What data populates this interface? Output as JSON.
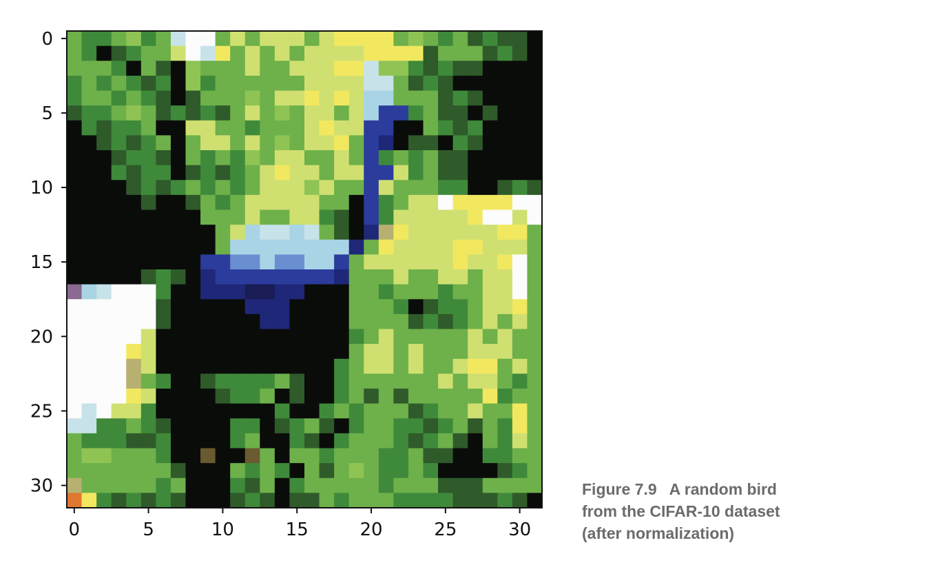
{
  "figure": {
    "caption": {
      "label": "Figure 7.9",
      "text_lines": [
        "A random bird",
        "from the CIFAR-10 dataset",
        "(after normalization)"
      ]
    }
  },
  "chart_data": {
    "type": "heatmap",
    "title": "",
    "xlabel": "",
    "ylabel": "",
    "image_size": [
      32,
      32
    ],
    "xlim": [
      -0.5,
      31.5
    ],
    "ylim": [
      31.5,
      -0.5
    ],
    "x_ticks": [
      0,
      5,
      10,
      15,
      20,
      25,
      30
    ],
    "y_ticks": [
      0,
      5,
      10,
      15,
      20,
      25,
      30
    ],
    "x_tick_labels": [
      "0",
      "5",
      "10",
      "15",
      "20",
      "25",
      "30"
    ],
    "y_tick_labels": [
      "0",
      "5",
      "10",
      "15",
      "20",
      "25",
      "30"
    ],
    "grid": false,
    "palette": {
      "K": "#0a0c0a",
      "d": "#2f5a2a",
      "m": "#3f8a3a",
      "g": "#6eb04a",
      "l": "#8fc455",
      "y": "#cfe070",
      "Y": "#f2e860",
      "W": "#fbfcfb",
      "c": "#c8e2ea",
      "b": "#2b3c9c",
      "B": "#1f2778",
      "n": "#1a1c55",
      "L": "#6a8fd0",
      "C": "#a8d4e6",
      "p": "#8a6a90",
      "o": "#e07830",
      "t": "#b8b070",
      "r": "#6a5a30"
    },
    "rows": [
      "gmmglmgcWWgygyyygyYYYYglgmgdmddK",
      "gmKdmggyWcYgygygyyyyYYYYdgggdmdK",
      "gggmKgdKlgggyggyyyYYcllmdmddKKKK",
      "mgmgmdmKlmggggggyyyyccgdmdKKKKKK",
      "mggmgmdKdggglgyyYyYyCCgggdmdKKKK",
      "dmmglgdmdmdgyglgyygyCbbmgddKdKKK",
      "KmdmmgKKyyggmgggyYyybbKKgmdmKKKK",
      "KKdmdmgKgyygyglgyyYgbBKddKmdKKKK",
      "KKKdmmdKgmgmlgyyggygbmgmgddKKKKK",
      "KKKmdmmKdmdmgyYyygyybbymgddKKKKK",
      "KKKKdmdmgmgmgyyylyggbygggmmKKdmd",
      "KKKKKdKKdgmgyyyyyggKbmgyyWYYYYWW",
      "KKKKKKKKKgggyggyymdKbmyyyyyYWWyW",
      "KKKKKKKKKKgyCccCcgdKBtYyyyyyyYYg",
      "KKKKKKKKKKgCCCCCCCCBgYyyyyYYyyyg",
      "KKKKKKKKKbbLLCLLCCbgyyyyyyYyyYWg",
      "KKKKKdmdKBbbbbbbbbBgggyggyygyyWg",
      "pCcWWWmKKBBBnnBBKKKggmgggmggyyWg",
      "WWWWWWdKKKKKBBBKKKKgggmKdmmgyyYg",
      "WWWWWWdKKKKKKBBKKKKggggdmdmgygyg",
      "WWWWWyKKKKKKKKKKKKKmgygggggygygg",
      "WWWWYyKKKKKKKKKKKKKgyygygggyyygg",
      "WWWWtyKKKKKKKKKKKKmgyygyggyYYgyg",
      "WWWWtgmKKdmmmmgdKKmggggggygyygmg",
      "WWWWYyKKKKdmmgKdKKmgdgdgggggYmgg",
      "WcWyymKKKKKKKKmKKmgmgggdmggyggYg",
      "ccmmgmdKKKKmmKdmgdKmggmmdmgdgmYg",
      "gmmmddmKKKKmgKKmdKmgggmdmgdKgmyg",
      "gllgggmKKrKKrgKggmgggmmgddKKmmgg",
      "gggggggdKKKgmgmKgdglgmmgmKKKKdmg",
      "tgggggmgKKKmdgKmgggggmgggdddgggg",
      "oYmdmdmdKKKdmdKddgmgggmmmmdddmdK"
    ]
  }
}
